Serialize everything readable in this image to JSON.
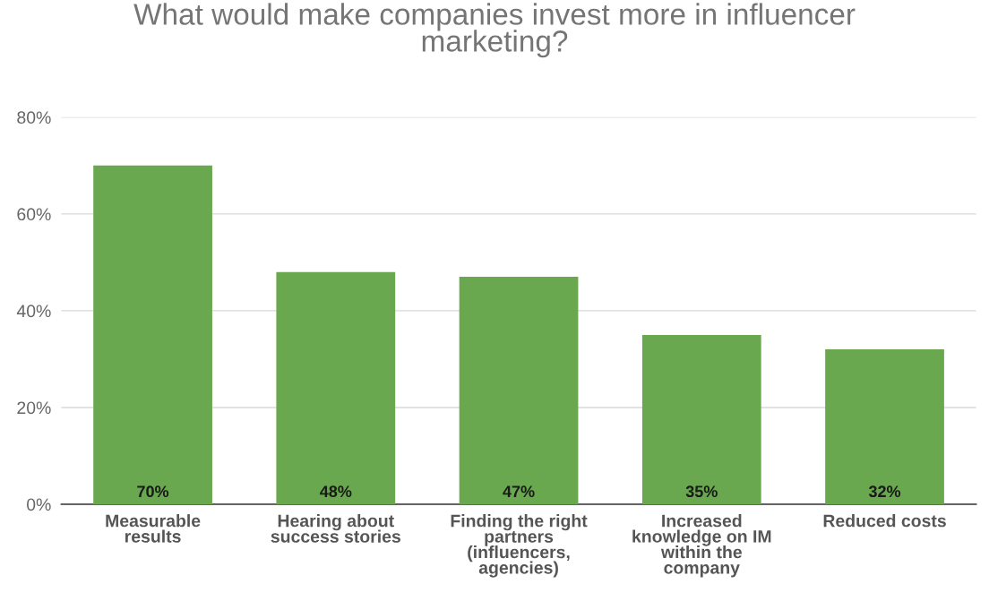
{
  "chart_data": {
    "type": "bar",
    "title": "What would make companies invest more in influencer\nmarketing?",
    "categories": [
      "Measurable\nresults",
      "Hearing about\nsuccess stories",
      "Finding the right\npartners\n(influencers,\nagencies)",
      "Increased\nknowledge on IM\nwithin the\ncompany",
      "Reduced costs"
    ],
    "series": [
      {
        "color": "#6aa84f",
        "values": [
          70,
          48,
          47,
          35,
          32
        ],
        "value_labels": [
          "70%",
          "48%",
          "47%",
          "35%",
          "32%"
        ]
      }
    ],
    "ylim": [
      0,
      80
    ],
    "yticks": [
      {
        "value": 0,
        "label": "0%"
      },
      {
        "value": 20,
        "label": "20%"
      },
      {
        "value": 40,
        "label": "40%"
      },
      {
        "value": 60,
        "label": "60%"
      },
      {
        "value": 80,
        "label": "80%"
      }
    ],
    "grid": "y",
    "legend": false
  }
}
